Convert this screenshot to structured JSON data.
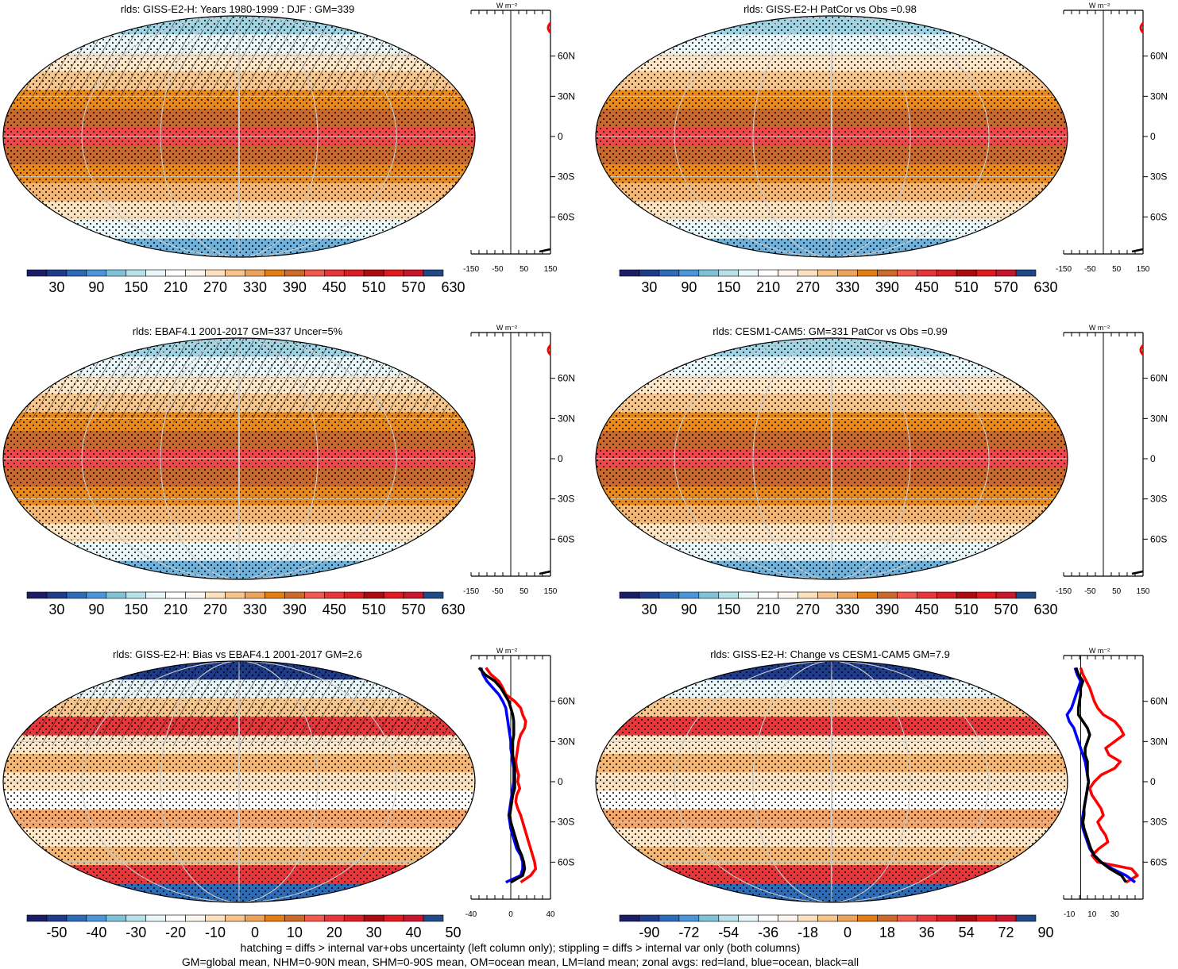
{
  "figure": {
    "footnote_line1": "hatching = diffs > internal var+obs uncertainty (left column only); stippling = diffs > internal var only (both columns)",
    "footnote_line2": "GM=global mean, NHM=0-90N mean, SHM=0-90S mean, OM=ocean mean, LM=land mean; zonal avgs: red=land, blue=ocean, black=all",
    "zonal_unit": "W m⁻²",
    "lat_labels": [
      "60N",
      "30N",
      "0",
      "30S",
      "60S"
    ]
  },
  "palettes": {
    "abs": [
      "#1b1e66",
      "#1f3c8c",
      "#2d6cb8",
      "#4b96d8",
      "#7fc4d6",
      "#b6e2ea",
      "#e8f6f8",
      "#ffffff",
      "#fdf6ee",
      "#fbe1bd",
      "#f8c48a",
      "#eda35b",
      "#e27e12",
      "#cb6a2a",
      "#f05a4f",
      "#e8373b",
      "#d91e24",
      "#ad0b10",
      "#df1b20",
      "#c8162c",
      "#204a87"
    ],
    "bias": [
      "#1b1e66",
      "#1f3c8c",
      "#2d6cb8",
      "#4b96d8",
      "#7fc4d6",
      "#b6e2ea",
      "#e8f6f8",
      "#ffffff",
      "#fdf6ee",
      "#fbe1bd",
      "#f8c48a",
      "#eda35b",
      "#e27e12",
      "#cb6a2a",
      "#f05a4f",
      "#e8373b",
      "#d91e24",
      "#ad0b10",
      "#df1b20",
      "#c8162c",
      "#204a87"
    ]
  },
  "chart_data": [
    {
      "type": "heatmap",
      "title": "rlds: GISS-E2-H: Years 1980-1999 : DJF : GM=339",
      "colorbar_ticks": [
        "30",
        "90",
        "150",
        "210",
        "270",
        "330",
        "390",
        "450",
        "510",
        "570",
        "630"
      ],
      "palette": "abs",
      "zonal_x_ticks": [
        "-150",
        "-50",
        "50",
        "150"
      ],
      "zonal_xlim": [
        -150,
        150
      ],
      "grid": true,
      "series": []
    },
    {
      "type": "heatmap",
      "title": "rlds: GISS-E2-H PatCor vs Obs =0.98",
      "colorbar_ticks": [
        "30",
        "90",
        "150",
        "210",
        "270",
        "330",
        "390",
        "450",
        "510",
        "570",
        "630"
      ],
      "palette": "abs",
      "zonal_x_ticks": [
        "-150",
        "-50",
        "50",
        "150"
      ],
      "zonal_xlim": [
        -150,
        150
      ],
      "grid": true,
      "series": []
    },
    {
      "type": "heatmap",
      "title": "rlds: EBAF4.1 2001-2017 GM=337 Uncer=5%",
      "colorbar_ticks": [
        "30",
        "90",
        "150",
        "210",
        "270",
        "330",
        "390",
        "450",
        "510",
        "570",
        "630"
      ],
      "palette": "abs",
      "zonal_x_ticks": [
        "-150",
        "-50",
        "50",
        "150"
      ],
      "zonal_xlim": [
        -150,
        150
      ],
      "grid": true,
      "series": []
    },
    {
      "type": "heatmap",
      "title": "rlds: CESM1-CAM5: GM=331 PatCor vs Obs =0.99",
      "colorbar_ticks": [
        "30",
        "90",
        "150",
        "210",
        "270",
        "330",
        "390",
        "450",
        "510",
        "570",
        "630"
      ],
      "palette": "abs",
      "zonal_x_ticks": [
        "-150",
        "-50",
        "50",
        "150"
      ],
      "zonal_xlim": [
        -150,
        150
      ],
      "grid": true,
      "series": []
    },
    {
      "type": "heatmap",
      "title": "rlds: GISS-E2-H: Bias vs EBAF4.1 2001-2017 GM=2.6",
      "colorbar_ticks": [
        "-50",
        "-40",
        "-30",
        "-20",
        "-10",
        "0",
        "10",
        "20",
        "30",
        "40",
        "50"
      ],
      "palette": "bias",
      "zonal_x_ticks": [
        "-40",
        "0",
        "40"
      ],
      "zonal_xlim": [
        -40,
        40
      ],
      "grid": true,
      "series": [
        {
          "color": "red",
          "lat": [
            85,
            80,
            75,
            70,
            65,
            60,
            55,
            50,
            45,
            40,
            35,
            30,
            25,
            20,
            15,
            10,
            5,
            0,
            -5,
            -10,
            -15,
            -20,
            -25,
            -30,
            -35,
            -40,
            -45,
            -50,
            -55,
            -60,
            -65,
            -70,
            -75
          ],
          "values": [
            -25,
            -20,
            -12,
            -8,
            -5,
            4,
            10,
            12,
            15,
            14,
            10,
            8,
            7,
            6,
            5,
            6,
            8,
            7,
            9,
            6,
            5,
            7,
            10,
            12,
            14,
            16,
            18,
            20,
            22,
            24,
            25,
            20,
            10
          ]
        },
        {
          "color": "blue",
          "lat": [
            85,
            80,
            75,
            70,
            65,
            60,
            55,
            50,
            45,
            40,
            35,
            30,
            25,
            20,
            15,
            10,
            5,
            0,
            -5,
            -10,
            -15,
            -20,
            -25,
            -30,
            -35,
            -40,
            -45,
            -50,
            -55,
            -60,
            -65,
            -70,
            -75
          ],
          "values": [
            -30,
            -28,
            -24,
            -18,
            -12,
            -8,
            -5,
            -4,
            -3,
            -2,
            -1,
            0,
            0,
            1,
            2,
            3,
            3,
            3,
            2,
            1,
            0,
            -1,
            -2,
            -1,
            0,
            2,
            4,
            6,
            10,
            12,
            12,
            10,
            -5
          ]
        },
        {
          "color": "black",
          "lat": [
            85,
            80,
            75,
            70,
            65,
            60,
            55,
            50,
            45,
            40,
            35,
            30,
            25,
            20,
            15,
            10,
            5,
            0,
            -5,
            -10,
            -15,
            -20,
            -25,
            -30,
            -35,
            -40,
            -45,
            -50,
            -55,
            -60,
            -65,
            -70,
            -75
          ],
          "values": [
            -32,
            -26,
            -16,
            -10,
            -6,
            -2,
            0,
            2,
            3,
            3,
            3,
            2,
            2,
            2,
            3,
            4,
            4,
            4,
            4,
            2,
            1,
            0,
            -1,
            0,
            2,
            4,
            6,
            8,
            11,
            13,
            14,
            12,
            0
          ]
        }
      ]
    },
    {
      "type": "heatmap",
      "title": "rlds: GISS-E2-H: Change vs CESM1-CAM5 GM=7.9",
      "colorbar_ticks": [
        "-90",
        "-72",
        "-54",
        "-36",
        "-18",
        "0",
        "18",
        "36",
        "54",
        "72",
        "90"
      ],
      "palette": "bias",
      "zonal_x_ticks": [
        "-10",
        "10",
        "30"
      ],
      "zonal_xlim": [
        -15,
        55
      ],
      "grid": true,
      "series": [
        {
          "color": "red",
          "lat": [
            85,
            80,
            75,
            70,
            65,
            60,
            55,
            50,
            45,
            40,
            35,
            30,
            25,
            20,
            15,
            10,
            5,
            0,
            -5,
            -10,
            -15,
            -20,
            -25,
            -30,
            -35,
            -40,
            -45,
            -50,
            -55,
            -60,
            -65,
            -70,
            -75
          ],
          "values": [
            0,
            2,
            5,
            8,
            10,
            12,
            15,
            20,
            30,
            35,
            38,
            30,
            22,
            25,
            35,
            30,
            18,
            12,
            8,
            10,
            14,
            18,
            20,
            15,
            18,
            22,
            24,
            16,
            10,
            15,
            45,
            50,
            40
          ]
        },
        {
          "color": "blue",
          "lat": [
            85,
            80,
            75,
            70,
            65,
            60,
            55,
            50,
            45,
            40,
            35,
            30,
            25,
            20,
            15,
            10,
            5,
            0,
            -5,
            -10,
            -15,
            -20,
            -25,
            -30,
            -35,
            -40,
            -45,
            -50,
            -55,
            -60,
            -65,
            -70,
            -75
          ],
          "values": [
            -5,
            -3,
            0,
            -2,
            -4,
            -6,
            -8,
            -12,
            -10,
            -6,
            -4,
            -2,
            0,
            2,
            4,
            5,
            6,
            7,
            6,
            5,
            4,
            3,
            2,
            1,
            2,
            4,
            6,
            8,
            12,
            18,
            28,
            40,
            48
          ]
        },
        {
          "color": "black",
          "lat": [
            85,
            80,
            75,
            70,
            65,
            60,
            55,
            50,
            45,
            40,
            35,
            30,
            25,
            20,
            15,
            10,
            5,
            0,
            -5,
            -10,
            -15,
            -20,
            -25,
            -30,
            -35,
            -40,
            -45,
            -50,
            -55,
            -60,
            -65,
            -70,
            -75
          ],
          "values": [
            -4,
            -2,
            2,
            0,
            0,
            -1,
            -2,
            -2,
            2,
            6,
            8,
            6,
            4,
            4,
            6,
            6,
            6,
            7,
            6,
            5,
            4,
            3,
            3,
            2,
            3,
            5,
            7,
            9,
            12,
            18,
            26,
            36,
            40
          ]
        }
      ]
    }
  ]
}
